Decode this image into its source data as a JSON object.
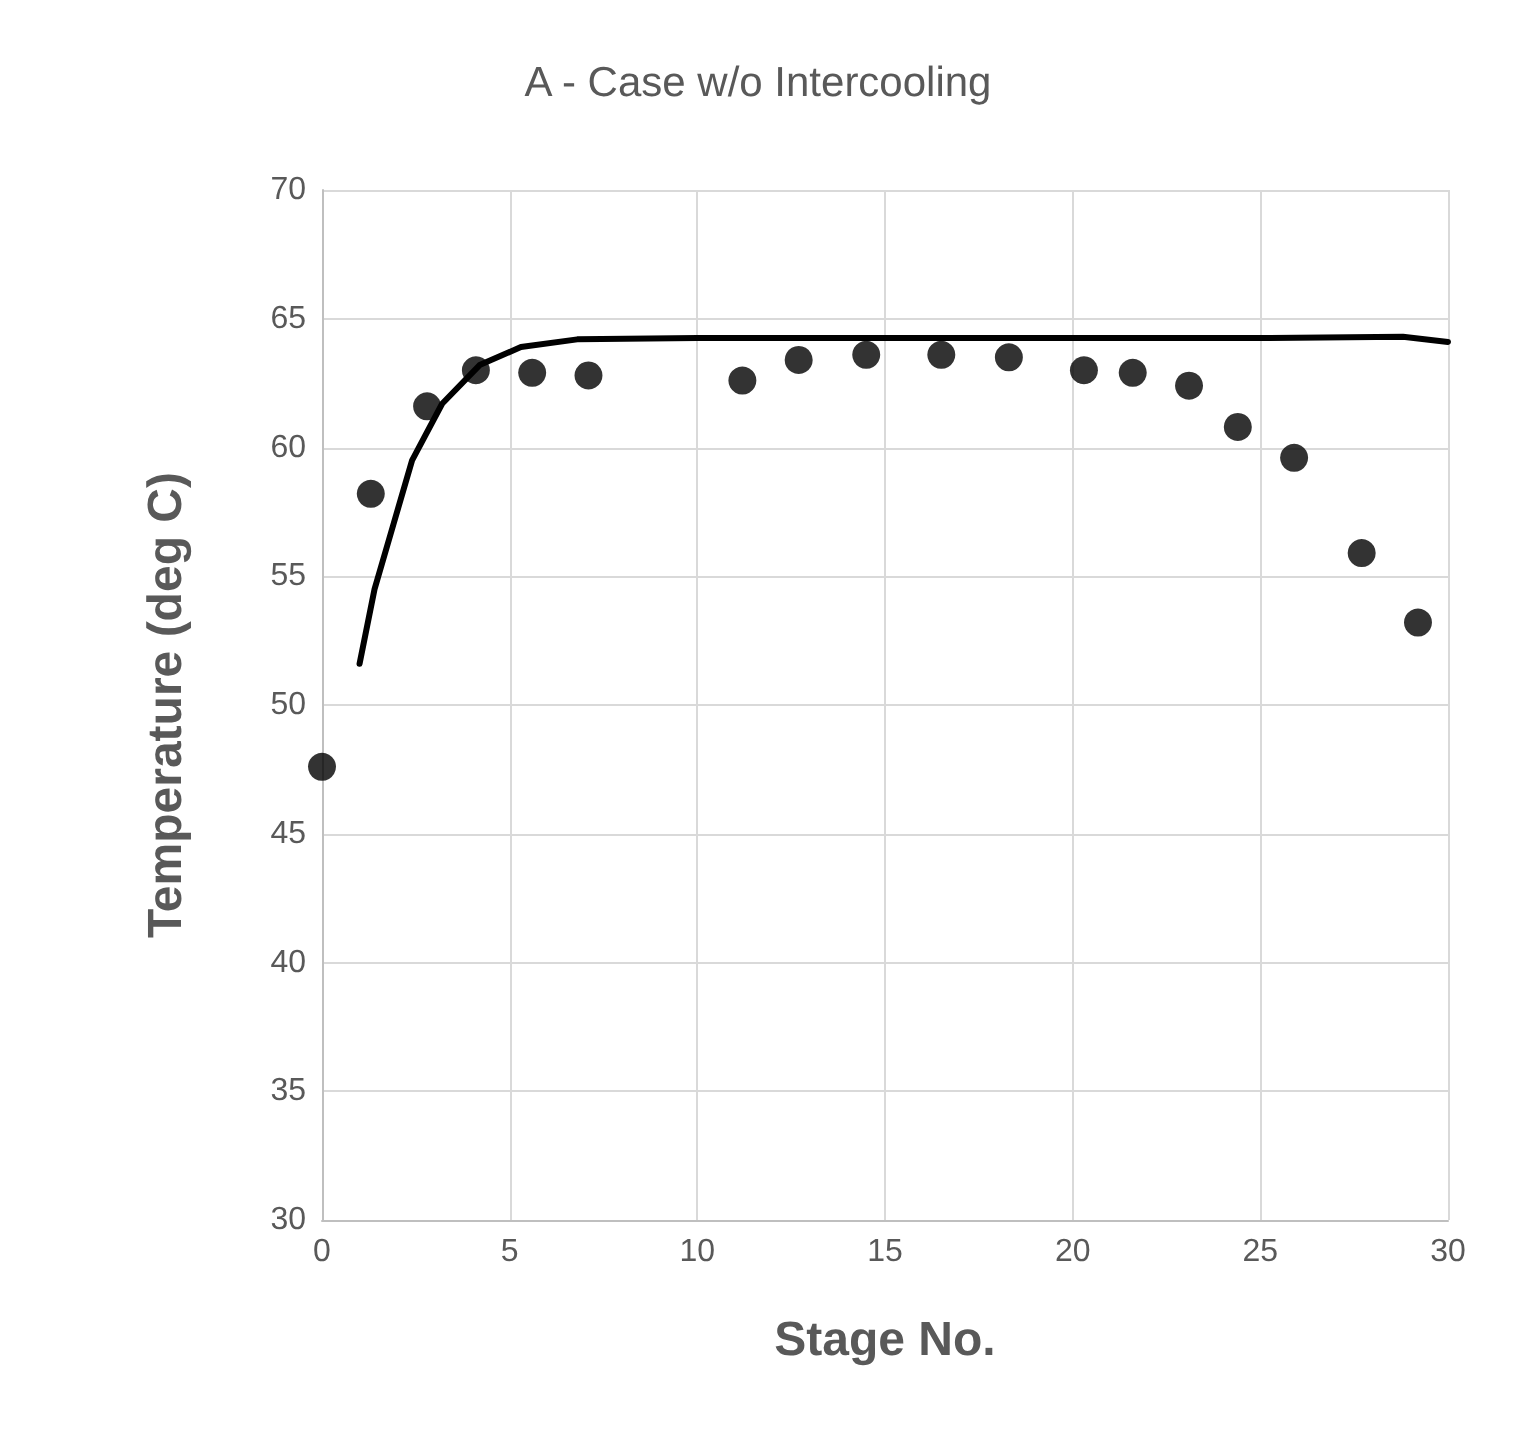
{
  "chart_data": {
    "type": "scatter",
    "title": "A - Case w/o Intercooling",
    "xlabel": "Stage No.",
    "ylabel": "Temperature (deg C)",
    "xlim": [
      0,
      30
    ],
    "xticks": [
      0,
      5,
      10,
      15,
      20,
      25,
      30
    ],
    "ylim": [
      30,
      70
    ],
    "yticks": [
      30,
      35,
      40,
      45,
      50,
      55,
      60,
      65,
      70
    ],
    "grid": true,
    "series": [
      {
        "marker": "circle",
        "color": "#000000",
        "x": [
          0,
          1.3,
          2.8,
          4.1,
          5.6,
          7.1,
          11.2,
          12.7,
          14.5,
          16.5,
          18.3,
          20.3,
          21.6,
          23.1,
          24.4,
          25.9,
          27.7,
          29.2
        ],
        "values": [
          47.6,
          58.2,
          61.6,
          63.0,
          62.9,
          62.8,
          62.6,
          63.4,
          63.6,
          63.6,
          63.5,
          63.0,
          62.9,
          62.4,
          60.8,
          59.6,
          55.9,
          53.2
        ]
      },
      {
        "type": "line",
        "marker": "none",
        "line_style": "solid",
        "color": "#000000",
        "x": [
          1.0,
          1.4,
          1.9,
          2.4,
          3.2,
          4.2,
          5.3,
          6.8,
          10,
          15,
          20,
          25,
          28.8,
          30
        ],
        "values": [
          51.6,
          54.5,
          57.0,
          59.5,
          61.7,
          63.2,
          63.9,
          64.2,
          64.25,
          64.25,
          64.25,
          64.25,
          64.3,
          64.1
        ]
      }
    ]
  }
}
